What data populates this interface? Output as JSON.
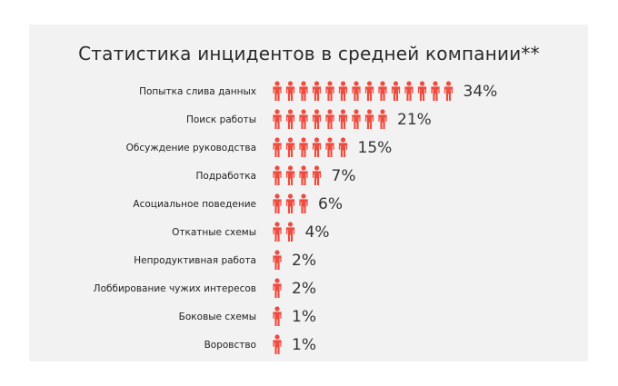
{
  "chart_data": {
    "type": "bar",
    "title": "Статистика инцидентов в средней компании**",
    "categories": [
      "Попытка слива данных",
      "Поиск работы",
      "Обсуждение руководства",
      "Подработка",
      "Асоциальное поведение",
      "Откатные схемы",
      "Непродуктивная работа",
      "Лоббирование чужих интересов",
      "Боковые схемы",
      "Воровство"
    ],
    "values": [
      34,
      21,
      15,
      7,
      6,
      4,
      2,
      2,
      1,
      1
    ],
    "value_labels": [
      "34%",
      "21%",
      "15%",
      "7%",
      "6%",
      "4%",
      "2%",
      "2%",
      "1%",
      "1%"
    ],
    "icon_counts": [
      14,
      9,
      6,
      4,
      3,
      2,
      1,
      1,
      1,
      1
    ],
    "icon": "person-icon",
    "icon_color": "#ef4b3f",
    "background_color": "#f2f2f2",
    "xlabel": "",
    "ylabel": ""
  }
}
